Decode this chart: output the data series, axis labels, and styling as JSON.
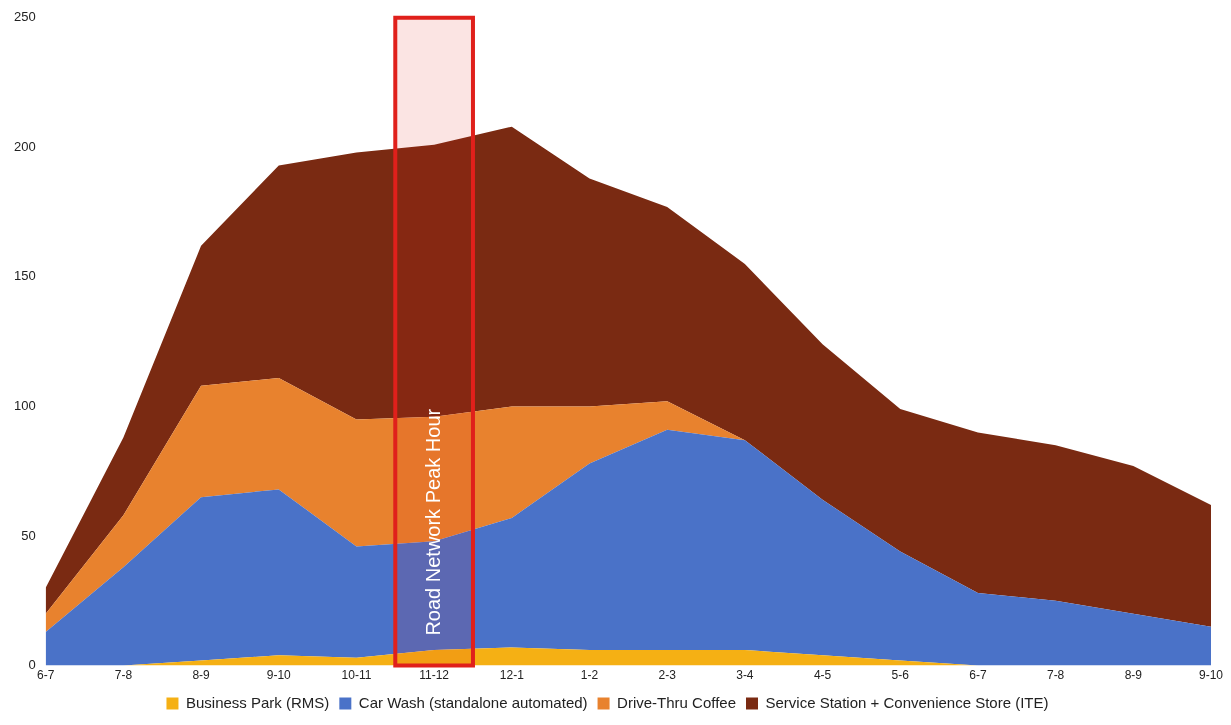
{
  "chart_data": {
    "type": "area",
    "stacked": true,
    "categories": [
      "6-7",
      "7-8",
      "8-9",
      "9-10",
      "10-11",
      "11-12",
      "12-1",
      "1-2",
      "2-3",
      "3-4",
      "4-5",
      "5-6",
      "6-7",
      "7-8",
      "8-9",
      "9-10"
    ],
    "series": [
      {
        "name": "Business Park (RMS)",
        "color": "#f5b014",
        "values": [
          0,
          0,
          2,
          4,
          3,
          6,
          7,
          6,
          6,
          6,
          4,
          2,
          0,
          0,
          0,
          0
        ]
      },
      {
        "name": "Car Wash (standalone automated)",
        "color": "#4a72c8",
        "values": [
          13,
          38,
          63,
          64,
          43,
          42,
          50,
          72,
          85,
          81,
          60,
          42,
          28,
          25,
          20,
          15
        ]
      },
      {
        "name": "Drive-Thru Coffee",
        "color": "#e8822e",
        "values": [
          7,
          20,
          43,
          43,
          49,
          48,
          43,
          22,
          11,
          0,
          0,
          0,
          0,
          0,
          0,
          0
        ]
      },
      {
        "name": "Service Station + Convenience Store (ITE)",
        "color": "#7a2a12",
        "values": [
          10,
          30,
          54,
          82,
          103,
          105,
          108,
          88,
          75,
          68,
          60,
          55,
          62,
          60,
          57,
          47
        ]
      }
    ],
    "ylim": [
      0,
      250
    ],
    "yticks": [
      0,
      50,
      100,
      150,
      200,
      250
    ],
    "grid": false,
    "legend": "bottom",
    "bands": [
      {
        "axis": "x",
        "from": "11-12",
        "to": "11-12",
        "label": "Road Network Peak Hour",
        "color": "#e0201b"
      }
    ]
  }
}
